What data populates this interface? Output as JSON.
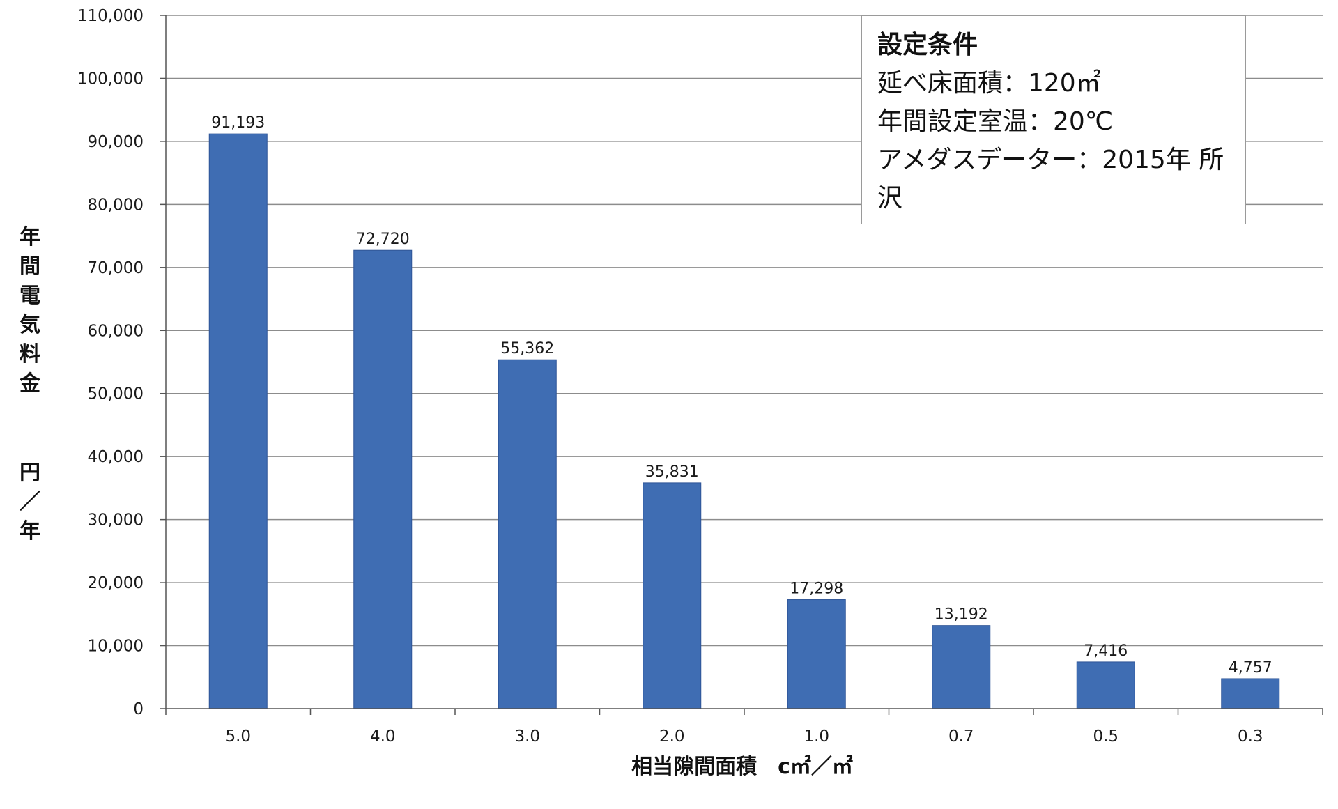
{
  "note": {
    "title": "設定条件",
    "lines": [
      "延べ床面積：120㎡",
      "年間設定室温：20℃",
      "アメダスデーター：2015年 所沢"
    ]
  },
  "chart_data": {
    "type": "bar",
    "title": "",
    "xlabel": "相当隙間面積　c㎡／㎡",
    "ylabel": "年間電気料金　円／年",
    "ylabel_parts": [
      "年間電気料金",
      "円／年"
    ],
    "categories": [
      "5.0",
      "4.0",
      "3.0",
      "2.0",
      "1.0",
      "0.7",
      "0.5",
      "0.3"
    ],
    "values": [
      91193,
      72720,
      55362,
      35831,
      17298,
      13192,
      7416,
      4757
    ],
    "value_labels": [
      "91,193",
      "72,720",
      "55,362",
      "35,831",
      "17,298",
      "13,192",
      "7,416",
      "4,757"
    ],
    "ylim": [
      0,
      110000
    ],
    "yticks": [
      0,
      10000,
      20000,
      30000,
      40000,
      50000,
      60000,
      70000,
      80000,
      90000,
      100000,
      110000
    ],
    "ytick_labels": [
      "0",
      "10,000",
      "20,000",
      "30,000",
      "40,000",
      "50,000",
      "60,000",
      "70,000",
      "80,000",
      "90,000",
      "100,000",
      "110,000"
    ],
    "grid": true,
    "bar_color": "#3f6db3",
    "bar_edge_color": "#2f5597",
    "grid_color": "#8c8c8c"
  }
}
